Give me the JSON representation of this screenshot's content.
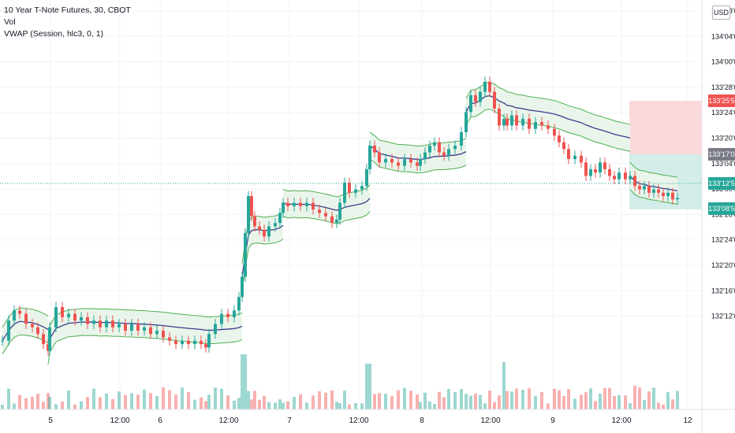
{
  "legend": {
    "symbol_line": "10 Year T-Note Futures, 30, CBOT",
    "volume_label": "Vol",
    "vwap_label": "VWAP (Session, hlc3, 0, 1)"
  },
  "currency_button": "USD",
  "colors": {
    "up": "#26a69a",
    "down": "#ef5350",
    "vwap": "#3d3c8c",
    "band": "#4caf50",
    "band_fill": "#e9f5ea",
    "grid": "#f0f3fa",
    "price_line": "#26a69a",
    "stop_zone": "#f8d0cf",
    "target_zone": "#cceae6",
    "entry_tag": "#787b86"
  },
  "chart_data": {
    "type": "candlestick",
    "title": "10 Year T-Note Futures, 30, CBOT",
    "y_axis_side": "right",
    "y_ticks": [
      "132'12'0",
      "132'16'0",
      "132'20'0",
      "132'24'0",
      "132'28'0",
      "133'00'0",
      "133'04'0",
      "133'20'0",
      "133'24'0",
      "133'28'0",
      "134'00'0",
      "134'04'0",
      "134'08'0"
    ],
    "x_ticks": [
      "5",
      "12:00",
      "6",
      "12:00",
      "7",
      "12:00",
      "8",
      "12:00",
      "9",
      "12:00",
      "12"
    ],
    "price_tags": {
      "stop": "133'25'5",
      "entry": "133'17'0",
      "current": "133'12'5",
      "target": "133'08'5"
    },
    "indicators": [
      "Vol",
      "VWAP (Session, hlc3, 0, 1)"
    ],
    "series": [
      {
        "name": "Price (approx. close)",
        "values": [
          [
            0,
            132.54
          ],
          [
            8,
            132.66
          ],
          [
            15,
            132.72
          ],
          [
            22,
            132.7
          ],
          [
            30,
            132.64
          ],
          [
            38,
            132.62
          ],
          [
            45,
            132.58
          ],
          [
            52,
            132.52
          ],
          [
            58,
            132.48
          ],
          [
            60,
            132.62
          ],
          [
            68,
            132.74
          ],
          [
            76,
            132.68
          ],
          [
            84,
            132.7
          ],
          [
            92,
            132.66
          ],
          [
            100,
            132.68
          ],
          [
            108,
            132.64
          ],
          [
            116,
            132.66
          ],
          [
            124,
            132.62
          ],
          [
            132,
            132.66
          ],
          [
            140,
            132.62
          ],
          [
            148,
            132.64
          ],
          [
            156,
            132.6
          ],
          [
            164,
            132.64
          ],
          [
            172,
            132.6
          ],
          [
            180,
            132.62
          ],
          [
            188,
            132.58
          ],
          [
            196,
            132.6
          ],
          [
            204,
            132.56
          ],
          [
            212,
            132.54
          ],
          [
            220,
            132.52
          ],
          [
            228,
            132.54
          ],
          [
            236,
            132.52
          ],
          [
            244,
            132.54
          ],
          [
            252,
            132.52
          ],
          [
            258,
            132.5
          ],
          [
            262,
            132.58
          ],
          [
            270,
            132.64
          ],
          [
            278,
            132.7
          ],
          [
            286,
            132.68
          ],
          [
            294,
            132.72
          ],
          [
            300,
            132.8
          ],
          [
            304,
            132.92
          ],
          [
            308,
            133.18
          ],
          [
            312,
            133.4
          ],
          [
            316,
            133.28
          ],
          [
            320,
            133.22
          ],
          [
            326,
            133.2
          ],
          [
            332,
            133.16
          ],
          [
            338,
            133.22
          ],
          [
            346,
            133.24
          ],
          [
            352,
            133.3
          ],
          [
            356,
            133.36
          ],
          [
            362,
            133.34
          ],
          [
            370,
            133.36
          ],
          [
            378,
            133.34
          ],
          [
            386,
            133.36
          ],
          [
            394,
            133.32
          ],
          [
            402,
            133.3
          ],
          [
            410,
            133.28
          ],
          [
            418,
            133.24
          ],
          [
            424,
            133.26
          ],
          [
            428,
            133.36
          ],
          [
            434,
            133.48
          ],
          [
            440,
            133.42
          ],
          [
            448,
            133.44
          ],
          [
            456,
            133.46
          ],
          [
            462,
            133.56
          ],
          [
            466,
            133.7
          ],
          [
            472,
            133.66
          ],
          [
            478,
            133.6
          ],
          [
            486,
            133.62
          ],
          [
            494,
            133.6
          ],
          [
            502,
            133.58
          ],
          [
            510,
            133.62
          ],
          [
            518,
            133.6
          ],
          [
            526,
            133.58
          ],
          [
            530,
            133.62
          ],
          [
            536,
            133.66
          ],
          [
            542,
            133.7
          ],
          [
            548,
            133.72
          ],
          [
            554,
            133.66
          ],
          [
            560,
            133.64
          ],
          [
            566,
            133.68
          ],
          [
            574,
            133.7
          ],
          [
            582,
            133.78
          ],
          [
            588,
            133.9
          ],
          [
            594,
            134.0
          ],
          [
            600,
            133.96
          ],
          [
            606,
            134.02
          ],
          [
            612,
            134.08
          ],
          [
            618,
            134.02
          ],
          [
            624,
            133.92
          ],
          [
            630,
            133.82
          ],
          [
            636,
            133.86
          ],
          [
            640,
            133.82
          ],
          [
            646,
            133.88
          ],
          [
            652,
            133.82
          ],
          [
            660,
            133.86
          ],
          [
            668,
            133.8
          ],
          [
            676,
            133.84
          ],
          [
            684,
            133.82
          ],
          [
            692,
            133.8
          ],
          [
            700,
            133.76
          ],
          [
            706,
            133.72
          ],
          [
            712,
            133.68
          ],
          [
            718,
            133.62
          ],
          [
            726,
            133.64
          ],
          [
            734,
            133.6
          ],
          [
            740,
            133.52
          ],
          [
            746,
            133.56
          ],
          [
            752,
            133.54
          ],
          [
            758,
            133.6
          ],
          [
            764,
            133.56
          ],
          [
            770,
            133.52
          ],
          [
            776,
            133.5
          ],
          [
            782,
            133.54
          ],
          [
            790,
            133.5
          ],
          [
            796,
            133.52
          ],
          [
            802,
            133.46
          ],
          [
            808,
            133.44
          ],
          [
            814,
            133.46
          ],
          [
            820,
            133.42
          ],
          [
            826,
            133.44
          ],
          [
            832,
            133.42
          ],
          [
            838,
            133.4
          ],
          [
            844,
            133.42
          ],
          [
            850,
            133.38
          ],
          [
            856,
            133.39
          ]
        ]
      }
    ]
  }
}
